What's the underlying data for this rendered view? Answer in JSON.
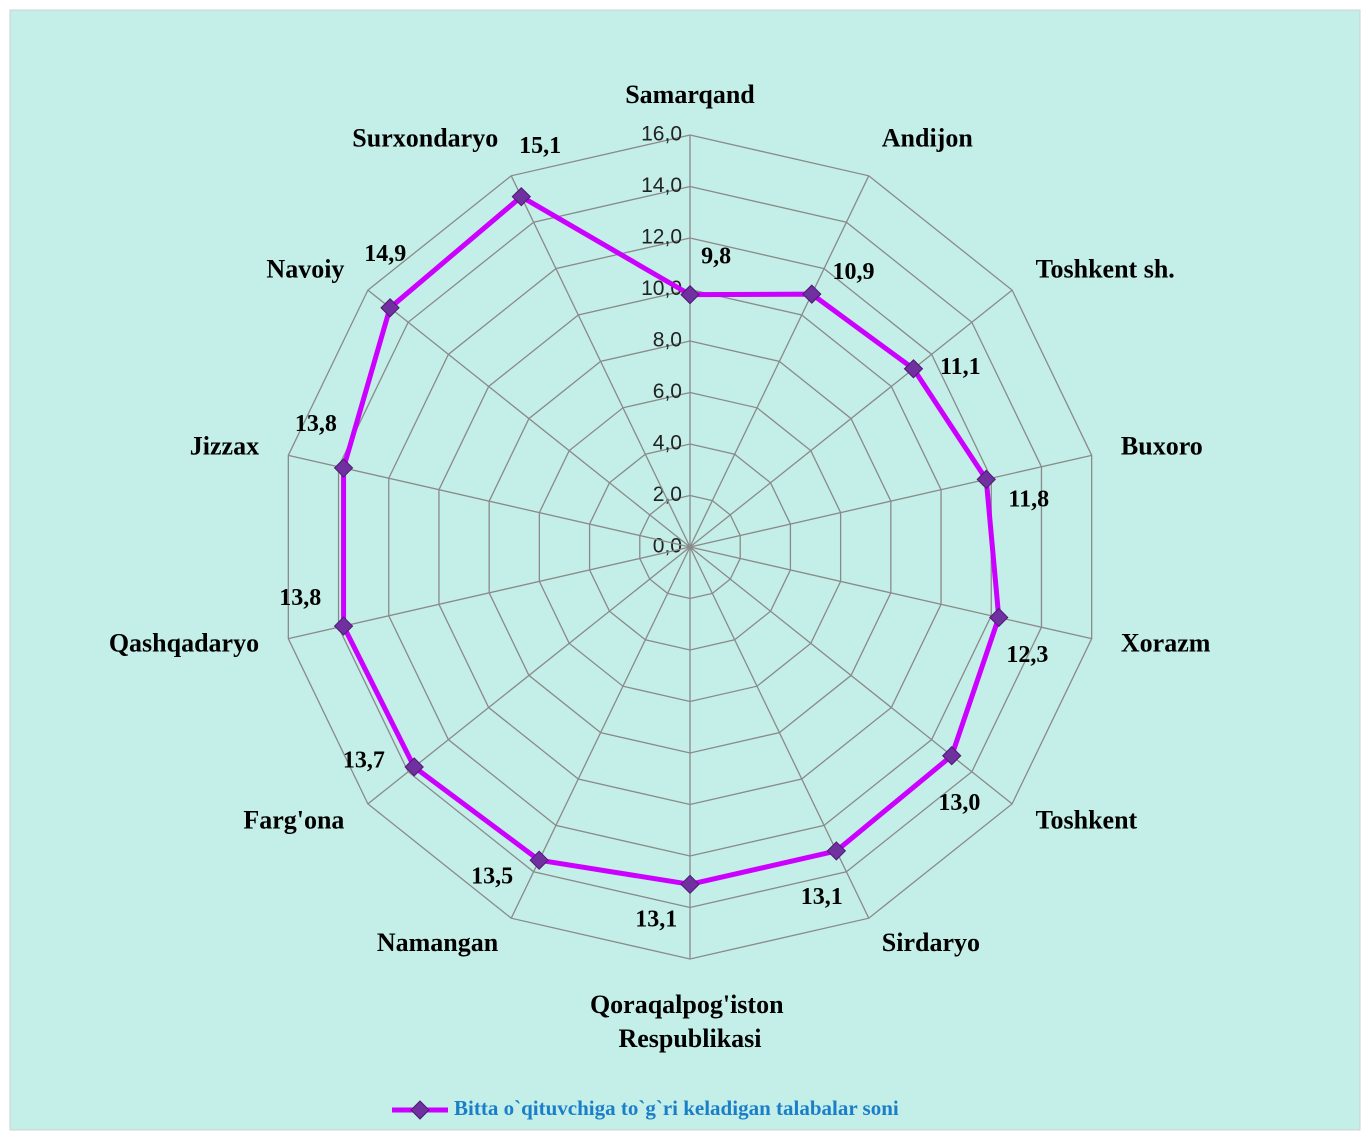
{
  "chart_data": {
    "type": "radar",
    "categories": [
      "Samarqand",
      "Andijon",
      "Toshkent sh.",
      "Buxoro",
      "Xorazm",
      "Toshkent",
      "Sirdaryo",
      "Qoraqalpog'iston Respublikasi",
      "Namangan",
      "Farg'ona",
      "Qashqadaryo",
      "Jizzax",
      "Navoiy",
      "Surxondaryo"
    ],
    "series": [
      {
        "name": "Bitta o`qituvchiga to`g`ri keladigan talabalar soni",
        "color": "#cc00ff",
        "marker_color": "#7030a0",
        "values": [
          9.8,
          10.9,
          11.1,
          11.8,
          12.3,
          13.0,
          13.1,
          13.1,
          13.5,
          13.7,
          13.8,
          13.8,
          14.9,
          15.1
        ],
        "value_labels": [
          "9,8",
          "10,9",
          "11,1",
          "11,8",
          "12,3",
          "13,0",
          "13,1",
          "13,1",
          "13,5",
          "13,7",
          "13,8",
          "13,8",
          "14,9",
          "15,1"
        ]
      }
    ],
    "ylim": [
      0,
      16
    ],
    "yticks": [
      {
        "value": 0,
        "label": "0,0"
      },
      {
        "value": 2,
        "label": "2,0"
      },
      {
        "value": 4,
        "label": "4,0"
      },
      {
        "value": 6,
        "label": "6,0"
      },
      {
        "value": 8,
        "label": "8,0"
      },
      {
        "value": 10,
        "label": "10,0"
      },
      {
        "value": 12,
        "label": "12,0"
      },
      {
        "value": 14,
        "label": "14,0"
      },
      {
        "value": 16,
        "label": "16,0"
      }
    ],
    "grid": true,
    "legend": "bottom"
  }
}
